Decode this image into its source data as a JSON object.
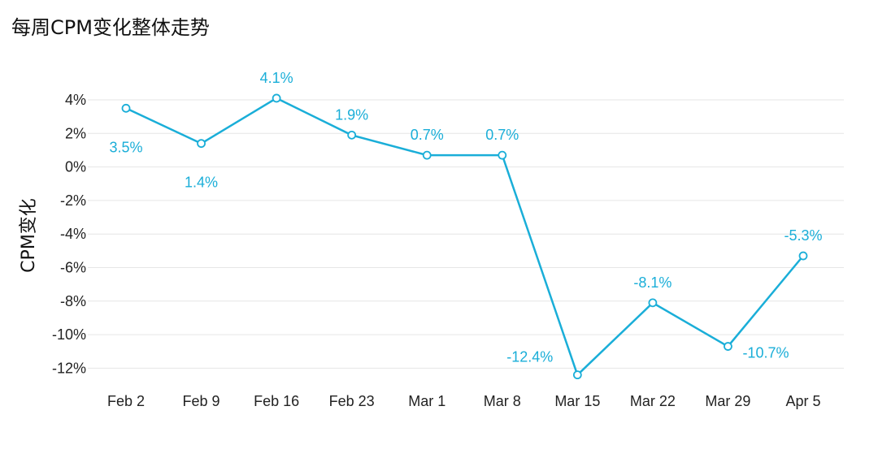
{
  "chart_data": {
    "type": "line",
    "title": "每周CPM变化整体走势",
    "ylabel": "CPM变化",
    "xlabel": "",
    "categories": [
      "Feb 2",
      "Feb 9",
      "Feb 16",
      "Feb 23",
      "Mar 1",
      "Mar 8",
      "Mar 15",
      "Mar 22",
      "Mar 29",
      "Apr 5"
    ],
    "series": [
      {
        "values": [
          3.5,
          1.4,
          4.1,
          1.9,
          0.7,
          0.7,
          -12.4,
          -8.1,
          -10.7,
          -5.3
        ],
        "labels": [
          "3.5%",
          "1.4%",
          "4.1%",
          "1.9%",
          "0.7%",
          "0.7%",
          "-12.4%",
          "-8.1%",
          "-10.7%",
          "-5.3%"
        ],
        "label_position": [
          "below",
          "below",
          "above",
          "above",
          "above",
          "above",
          "left",
          "above",
          "right",
          "above"
        ]
      }
    ],
    "ylim": [
      -13,
      5
    ],
    "yticks": [
      4,
      2,
      0,
      -2,
      -4,
      -6,
      -8,
      -10,
      -12
    ],
    "ytick_labels": [
      "4%",
      "2%",
      "0%",
      "-2%",
      "-4%",
      "-6%",
      "-8%",
      "-10%",
      "-12%"
    ],
    "grid": true,
    "legend": "none",
    "colors": {
      "line": "#1aaed8",
      "label": "#1aaed8",
      "grid": "#e6e6e6",
      "marker_fill": "#ffffff"
    }
  }
}
